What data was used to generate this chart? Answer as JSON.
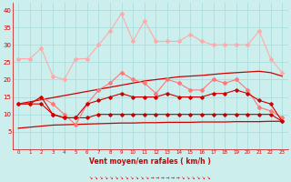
{
  "x": [
    0,
    1,
    2,
    3,
    4,
    5,
    6,
    7,
    8,
    9,
    10,
    11,
    12,
    13,
    14,
    15,
    16,
    17,
    18,
    19,
    20,
    21,
    22,
    23
  ],
  "line1": [
    26,
    26,
    29,
    21,
    20,
    26,
    26,
    30,
    34,
    39,
    31,
    37,
    31,
    31,
    31,
    33,
    31,
    30,
    30,
    30,
    30,
    34,
    26,
    22
  ],
  "line2": [
    13,
    13,
    15,
    13,
    10,
    7,
    13,
    17,
    19,
    22,
    20,
    19,
    16,
    20,
    19,
    17,
    17,
    20,
    19,
    20,
    17,
    12,
    11,
    9
  ],
  "line3_trend": [
    13,
    13.6,
    14.2,
    14.8,
    15.4,
    16.0,
    16.6,
    17.2,
    17.8,
    18.4,
    19.0,
    19.6,
    20.0,
    20.4,
    20.8,
    21.0,
    21.2,
    21.5,
    21.8,
    22.0,
    22.2,
    22.4,
    22.0,
    21.0
  ],
  "line4": [
    13,
    13,
    15,
    10,
    9,
    9,
    13,
    14,
    15,
    16,
    15,
    15,
    15,
    16,
    15,
    15,
    15,
    16,
    16,
    17,
    16,
    14,
    13,
    8
  ],
  "line5_trend": [
    6,
    6.3,
    6.6,
    6.9,
    7.0,
    7.1,
    7.2,
    7.3,
    7.4,
    7.5,
    7.5,
    7.6,
    7.6,
    7.7,
    7.7,
    7.7,
    7.8,
    7.8,
    7.8,
    7.9,
    7.9,
    7.9,
    8.0,
    8.0
  ],
  "line6": [
    13,
    13,
    13,
    10,
    9,
    9,
    9,
    10,
    10,
    10,
    10,
    10,
    10,
    10,
    10,
    10,
    10,
    10,
    10,
    10,
    10,
    10,
    10,
    8
  ],
  "background": "#cceeed",
  "grid_color": "#aadddd",
  "line1_color": "#ffaaaa",
  "line2_color": "#ff7777",
  "line3_color": "#cc0000",
  "line4_color": "#cc0000",
  "line5_color": "#cc0000",
  "line6_color": "#cc0000",
  "xlabel": "Vent moyen/en rafales ( km/h )",
  "ylim": [
    0,
    42
  ],
  "yticks": [
    5,
    10,
    15,
    20,
    25,
    30,
    35,
    40
  ],
  "tick_color": "#cc0000",
  "xlabel_color": "#cc0000"
}
